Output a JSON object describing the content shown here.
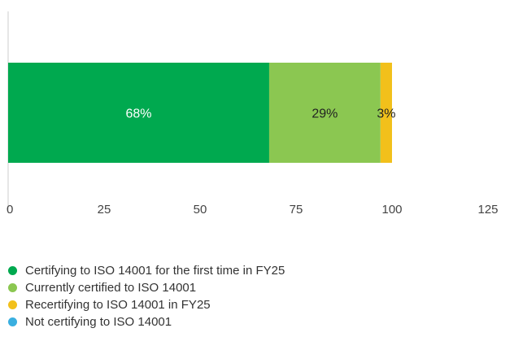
{
  "chart_data": {
    "type": "bar",
    "orientation": "horizontal",
    "stacked": true,
    "categories": [
      ""
    ],
    "series": [
      {
        "name": "Certifying to ISO 14001 for the first time in FY25",
        "values": [
          68
        ],
        "label": "68%",
        "color": "#00a94f",
        "label_color": "#ffffff"
      },
      {
        "name": "Currently certified to ISO 14001",
        "values": [
          29
        ],
        "label": "29%",
        "color": "#8bc751",
        "label_color": "#222222"
      },
      {
        "name": "Recertifying to ISO 14001 in FY25",
        "values": [
          3
        ],
        "label": "3%",
        "color": "#f2c01b",
        "label_color": "#222222"
      },
      {
        "name": "Not certifying to ISO 14001",
        "values": [
          0
        ],
        "label": "",
        "color": "#3aafe0",
        "label_color": "#222222"
      }
    ],
    "xlim": [
      0,
      125
    ],
    "xticks": [
      "0",
      "25",
      "50",
      "75",
      "100",
      "125"
    ],
    "grid": false,
    "legend_position": "bottom-left"
  }
}
